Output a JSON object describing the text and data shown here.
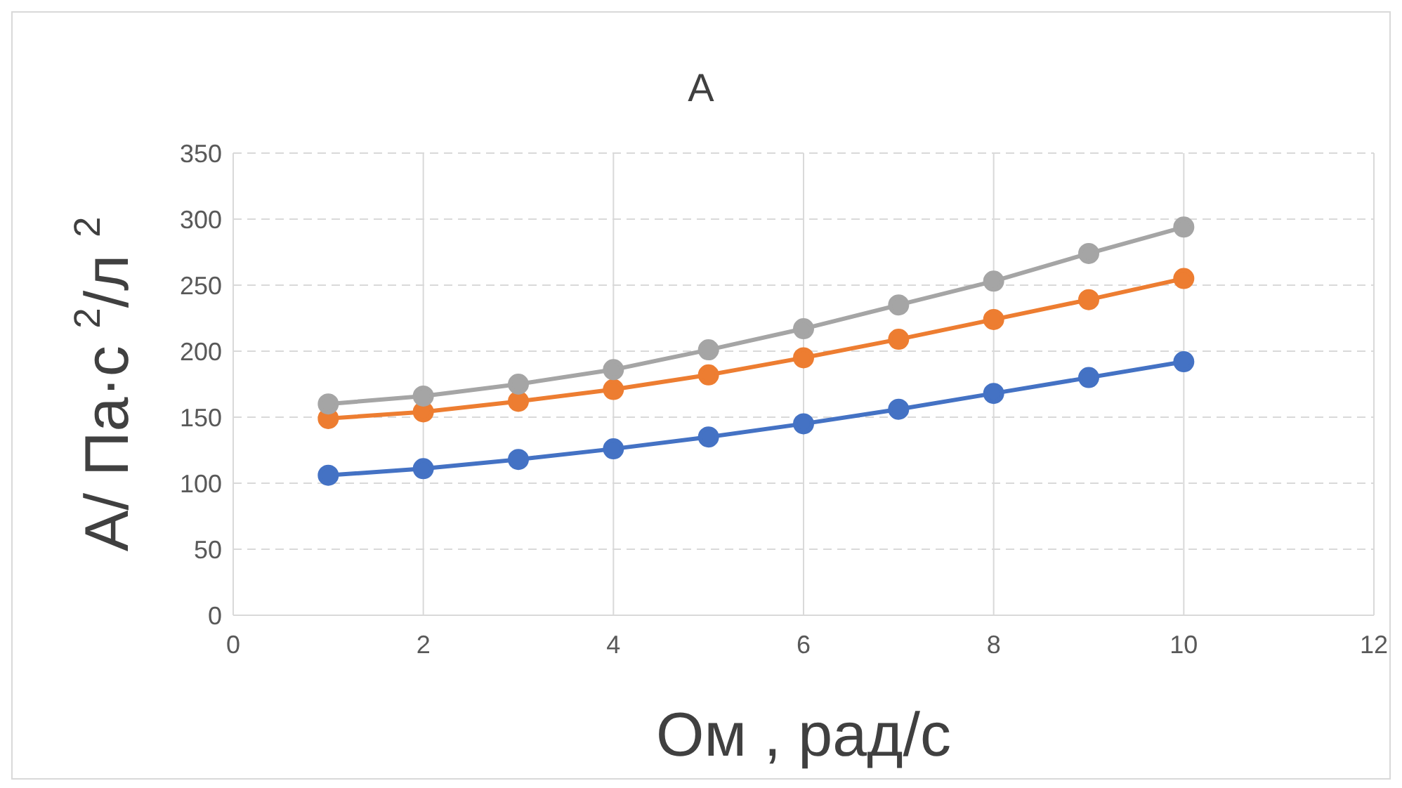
{
  "chart_data": {
    "type": "line",
    "title": "А",
    "xlabel": "Ом , рад/с",
    "ylabel": "А/ Па·с $^{2}$/л $^{2}$",
    "x": [
      1,
      2,
      3,
      4,
      5,
      6,
      7,
      8,
      9,
      10
    ],
    "series": [
      {
        "color": "#4472c4",
        "values": [
          106,
          111,
          118,
          126,
          135,
          145,
          156,
          168,
          180,
          192
        ]
      },
      {
        "color": "#ed7d31",
        "values": [
          149,
          154,
          162,
          171,
          182,
          195,
          209,
          224,
          239,
          255
        ]
      },
      {
        "color": "#a5a5a5",
        "values": [
          160,
          166,
          175,
          186,
          201,
          217,
          235,
          253,
          274,
          294
        ]
      }
    ],
    "xlim": [
      0,
      12
    ],
    "xticks": [
      0,
      2,
      4,
      6,
      8,
      10,
      12
    ],
    "ylim": [
      0,
      350
    ],
    "yticks": [
      0,
      50,
      100,
      150,
      200,
      250,
      300,
      350
    ],
    "grid": true,
    "marker": "circle",
    "line_style": "solid",
    "legend": false
  }
}
